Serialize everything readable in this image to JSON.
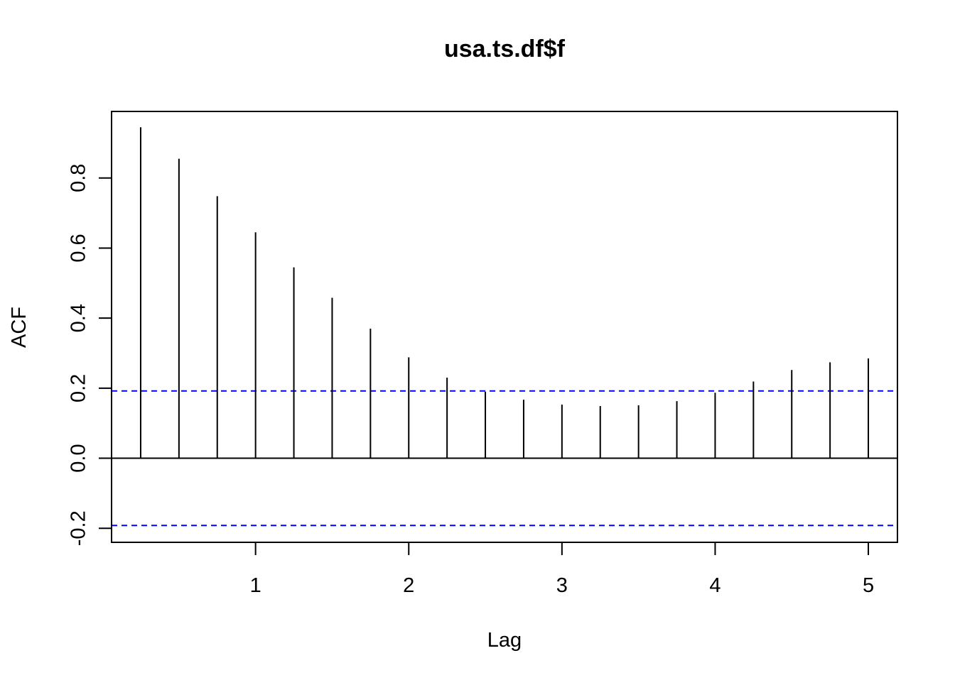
{
  "chart_data": {
    "type": "bar",
    "title": "usa.ts.df$f",
    "xlabel": "Lag",
    "ylabel": "ACF",
    "xlim": [
      0.06,
      5.19
    ],
    "ylim": [
      -0.24,
      0.99
    ],
    "x_ticks": [
      1,
      2,
      3,
      4,
      5
    ],
    "x_tick_labels": [
      "1",
      "2",
      "3",
      "4",
      "5"
    ],
    "y_ticks": [
      -0.2,
      0.0,
      0.2,
      0.4,
      0.6,
      0.8
    ],
    "y_tick_labels": [
      "-0.2",
      "0.0",
      "0.2",
      "0.4",
      "0.6",
      "0.8"
    ],
    "x": [
      0.25,
      0.5,
      0.75,
      1.0,
      1.25,
      1.5,
      1.75,
      2.0,
      2.25,
      2.5,
      2.75,
      3.0,
      3.25,
      3.5,
      3.75,
      4.0,
      4.25,
      4.5,
      4.75,
      5.0
    ],
    "values": [
      0.945,
      0.855,
      0.748,
      0.645,
      0.545,
      0.458,
      0.37,
      0.288,
      0.23,
      0.19,
      0.167,
      0.153,
      0.149,
      0.151,
      0.163,
      0.187,
      0.219,
      0.252,
      0.274,
      0.285
    ],
    "confidence_bound": 0.192,
    "grid": false,
    "legend": "none",
    "colors": {
      "bars": "#000000",
      "confidence_lines": "#0000ff",
      "zero_line": "#000000",
      "frame": "#000000"
    }
  }
}
